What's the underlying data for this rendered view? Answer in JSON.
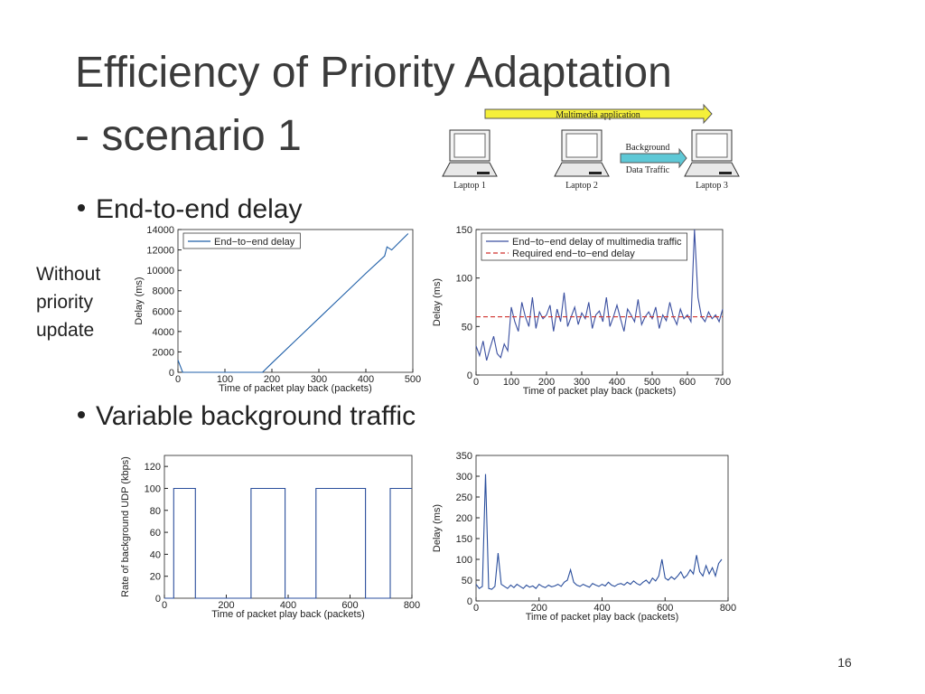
{
  "slide": {
    "title_line1": "Efficiency of Priority Adaptation",
    "title_line2": "- scenario 1",
    "bullets": [
      "End-to-end delay",
      "Variable background traffic"
    ],
    "side_label": "Without priority update",
    "page_number": "16",
    "diagram": {
      "top_arrow": "Multimedia application",
      "middle_arrow_line1": "Background",
      "middle_arrow_line2": "Data Traffic",
      "laptops": [
        "Laptop 1",
        "Laptop 2",
        "Laptop 3"
      ]
    }
  },
  "chart_data": [
    {
      "type": "line",
      "xlabel": "Time of packet play back (packets)",
      "ylabel": "Delay (ms)",
      "xlim": [
        0,
        500
      ],
      "ylim": [
        0,
        14000
      ],
      "xticks": [
        0,
        100,
        200,
        300,
        400,
        500
      ],
      "yticks": [
        0,
        2000,
        4000,
        6000,
        8000,
        10000,
        12000,
        14000
      ],
      "legend": "upper left",
      "x": [
        0,
        5,
        10,
        20,
        50,
        100,
        150,
        180,
        200,
        250,
        300,
        350,
        400,
        440,
        445,
        455,
        470,
        490
      ],
      "series": [
        {
          "name": "End−to−end delay",
          "color": "#1f5fa8",
          "dash": false,
          "values": [
            1200,
            600,
            0,
            0,
            0,
            0,
            0,
            0,
            900,
            3100,
            5300,
            7500,
            9700,
            11400,
            12300,
            12000,
            12700,
            13600
          ]
        }
      ]
    },
    {
      "type": "line",
      "xlabel": "Time of packet play back (packets)",
      "ylabel": "Delay (ms)",
      "xlim": [
        0,
        700
      ],
      "ylim": [
        0,
        150
      ],
      "xticks": [
        0,
        100,
        200,
        300,
        400,
        500,
        600,
        700
      ],
      "yticks": [
        0,
        50,
        100,
        150
      ],
      "legend": "upper left",
      "x": [
        0,
        10,
        20,
        30,
        40,
        50,
        60,
        70,
        80,
        90,
        100,
        110,
        120,
        130,
        140,
        150,
        160,
        170,
        180,
        190,
        200,
        210,
        220,
        230,
        240,
        250,
        260,
        270,
        280,
        290,
        300,
        310,
        320,
        330,
        340,
        350,
        360,
        370,
        380,
        390,
        400,
        410,
        420,
        430,
        440,
        450,
        460,
        470,
        480,
        490,
        500,
        510,
        520,
        530,
        540,
        550,
        560,
        570,
        580,
        590,
        600,
        610,
        620,
        630,
        640,
        650,
        660,
        670,
        680,
        690,
        700
      ],
      "series": [
        {
          "name": "End−to−end delay of multimedia traffic",
          "color": "#3a4fa0",
          "dash": false,
          "values": [
            30,
            20,
            35,
            15,
            28,
            40,
            22,
            18,
            32,
            25,
            70,
            55,
            45,
            75,
            60,
            50,
            80,
            48,
            65,
            58,
            62,
            72,
            45,
            68,
            55,
            85,
            50,
            60,
            70,
            52,
            64,
            58,
            75,
            48,
            62,
            66,
            55,
            80,
            50,
            60,
            72,
            58,
            45,
            68,
            62,
            55,
            78,
            52,
            60,
            65,
            58,
            70,
            48,
            62,
            56,
            75,
            60,
            52,
            68,
            58,
            62,
            55,
            150,
            80,
            60,
            55,
            65,
            58,
            62,
            55,
            68
          ]
        },
        {
          "name": "Required end−to−end delay",
          "color": "#d0312d",
          "dash": true,
          "values": [
            60,
            60,
            60,
            60,
            60,
            60,
            60,
            60,
            60,
            60,
            60,
            60,
            60,
            60,
            60,
            60,
            60,
            60,
            60,
            60,
            60,
            60,
            60,
            60,
            60,
            60,
            60,
            60,
            60,
            60,
            60,
            60,
            60,
            60,
            60,
            60,
            60,
            60,
            60,
            60,
            60,
            60,
            60,
            60,
            60,
            60,
            60,
            60,
            60,
            60,
            60,
            60,
            60,
            60,
            60,
            60,
            60,
            60,
            60,
            60,
            60,
            60,
            60,
            60,
            60,
            60,
            60,
            60,
            60,
            60,
            60
          ]
        }
      ]
    },
    {
      "type": "line",
      "xlabel": "Time of packet play back (packets)",
      "ylabel": "Rate of background UDP (kbps)",
      "xlim": [
        0,
        800
      ],
      "ylim": [
        0,
        130
      ],
      "xticks": [
        0,
        200,
        400,
        600,
        800
      ],
      "yticks": [
        0,
        20,
        40,
        60,
        80,
        100,
        120
      ],
      "x": [
        0,
        30,
        30,
        100,
        100,
        280,
        280,
        390,
        390,
        490,
        490,
        650,
        650,
        730,
        730,
        800
      ],
      "series": [
        {
          "color": "#2a4e9c",
          "dash": false,
          "values": [
            0,
            0,
            100,
            100,
            0,
            0,
            100,
            100,
            0,
            0,
            100,
            100,
            0,
            0,
            100,
            100
          ]
        }
      ]
    },
    {
      "type": "line",
      "xlabel": "Time of packet play back (packets)",
      "ylabel": "Delay (ms)",
      "xlim": [
        0,
        800
      ],
      "ylim": [
        0,
        350
      ],
      "xticks": [
        0,
        200,
        400,
        600,
        800
      ],
      "yticks": [
        0,
        50,
        100,
        150,
        200,
        250,
        300,
        350
      ],
      "x": [
        0,
        10,
        20,
        30,
        40,
        50,
        60,
        70,
        80,
        90,
        100,
        110,
        120,
        130,
        140,
        150,
        160,
        170,
        180,
        190,
        200,
        210,
        220,
        230,
        240,
        250,
        260,
        270,
        280,
        290,
        300,
        310,
        320,
        330,
        340,
        350,
        360,
        370,
        380,
        390,
        400,
        410,
        420,
        430,
        440,
        450,
        460,
        470,
        480,
        490,
        500,
        510,
        520,
        530,
        540,
        550,
        560,
        570,
        580,
        590,
        600,
        610,
        620,
        630,
        640,
        650,
        660,
        670,
        680,
        690,
        700,
        710,
        720,
        730,
        740,
        750,
        760,
        770,
        780
      ],
      "series": [
        {
          "color": "#2a4e9c",
          "dash": false,
          "values": [
            40,
            30,
            35,
            305,
            30,
            28,
            35,
            115,
            40,
            35,
            30,
            38,
            32,
            40,
            35,
            30,
            38,
            33,
            36,
            30,
            40,
            35,
            32,
            38,
            34,
            36,
            40,
            35,
            45,
            50,
            75,
            45,
            38,
            35,
            40,
            36,
            33,
            42,
            38,
            35,
            40,
            36,
            45,
            38,
            35,
            40,
            42,
            38,
            45,
            40,
            48,
            42,
            38,
            45,
            50,
            42,
            55,
            48,
            60,
            100,
            55,
            50,
            58,
            52,
            60,
            70,
            55,
            62,
            75,
            65,
            110,
            70,
            60,
            85,
            65,
            80,
            60,
            90,
            100
          ]
        }
      ]
    }
  ]
}
